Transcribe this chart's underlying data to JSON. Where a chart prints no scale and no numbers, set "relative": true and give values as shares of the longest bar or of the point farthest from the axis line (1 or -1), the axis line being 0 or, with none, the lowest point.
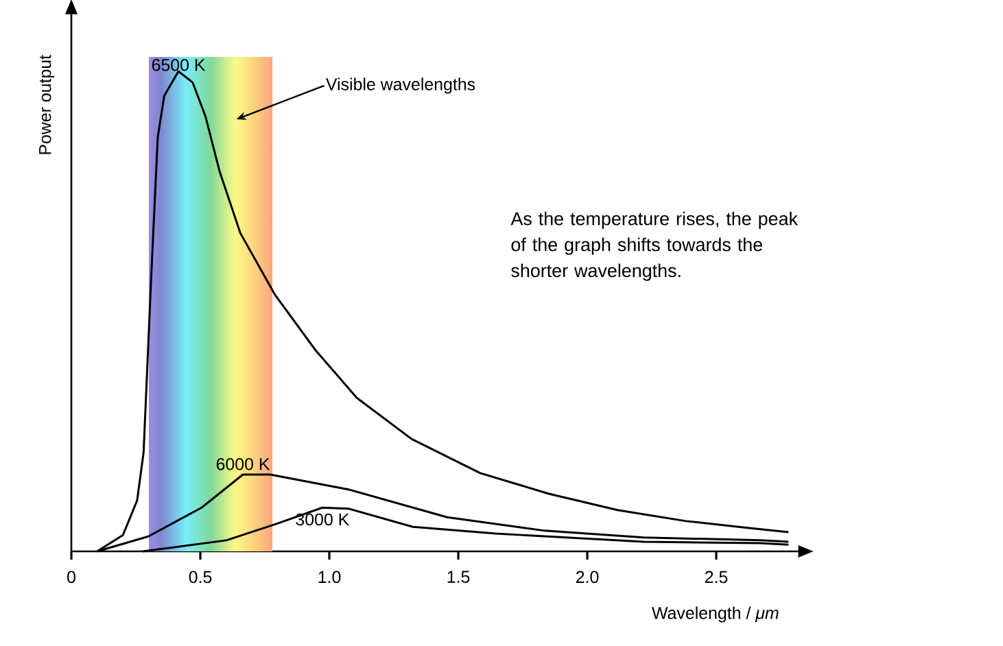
{
  "chart_data": {
    "type": "line",
    "relative": true,
    "xlabel": "Wavelength / *μm*",
    "ylabel": "Power output",
    "xlim": [
      0,
      2.82
    ],
    "xticks": [
      0,
      0.5,
      {
        "value": 1,
        "label": "1.0"
      },
      1.5,
      {
        "value": 2,
        "label": "2.0"
      },
      2.5
    ],
    "series": [
      {
        "name": "6500 K",
        "color": "#000000",
        "x": [
          0.1,
          0.2,
          0.255,
          0.28,
          0.31,
          0.335,
          0.36,
          0.415,
          0.47,
          0.52,
          0.575,
          0.655,
          0.79,
          0.945,
          1.106,
          1.319,
          1.585,
          1.851,
          2.117,
          2.383,
          2.622,
          2.78
        ],
        "values": [
          0,
          0.034,
          0.106,
          0.206,
          0.577,
          0.863,
          0.949,
          1,
          0.977,
          0.906,
          0.791,
          0.663,
          0.534,
          0.42,
          0.32,
          0.234,
          0.163,
          0.12,
          0.086,
          0.063,
          0.049,
          0.04
        ]
      },
      {
        "name": "6000 K",
        "color": "#000000",
        "x": [
          0.1,
          0.298,
          0.505,
          0.665,
          0.771,
          1.074,
          1.457,
          1.835,
          2.218,
          2.67,
          2.78
        ],
        "values": [
          0,
          0.031,
          0.091,
          0.16,
          0.16,
          0.129,
          0.071,
          0.043,
          0.029,
          0.023,
          0.02
        ]
      },
      {
        "name": "3000 K",
        "color": "#000000",
        "x": [
          0.277,
          0.601,
          0.793,
          0.973,
          1.074,
          1.324,
          1.644,
          2.218,
          2.67,
          2.78
        ],
        "values": [
          0,
          0.023,
          0.057,
          0.091,
          0.089,
          0.051,
          0.037,
          0.02,
          0.017,
          0.014
        ]
      }
    ],
    "bands": [
      {
        "axis": "x",
        "from": 0.3,
        "to": 0.78,
        "label": "Visible wavelengths"
      }
    ],
    "annotations": [
      "As the temperature rises, the peak of the graph shifts towards the shorter wavelengths."
    ],
    "grid": false,
    "marker": "none",
    "line_style": "solid"
  }
}
